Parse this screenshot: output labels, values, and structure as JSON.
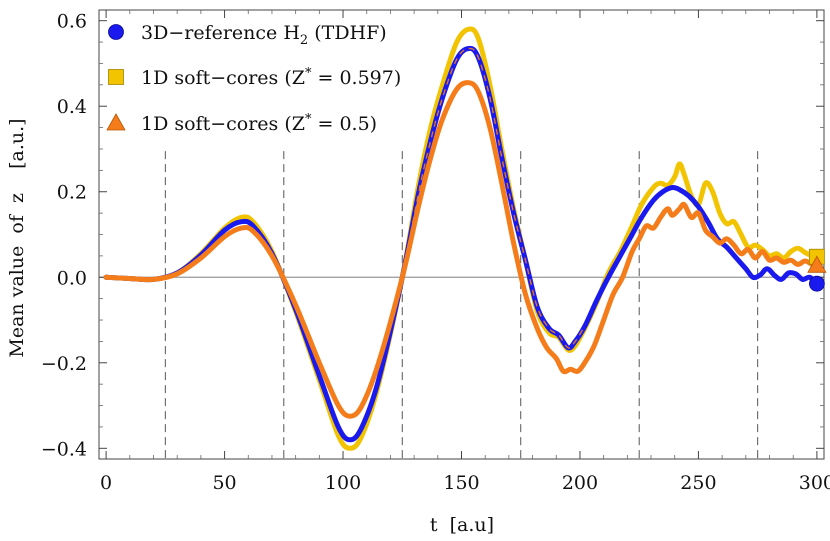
{
  "chart_data": {
    "type": "line",
    "title": "",
    "xlabel": "t  [a.u]",
    "ylabel": "Mean value  of  z    [a.u.]",
    "xlim": [
      -3,
      303
    ],
    "ylim": [
      -0.425,
      0.625
    ],
    "xticks": [
      0,
      50,
      100,
      150,
      200,
      250,
      300
    ],
    "xtick_labels": [
      "0",
      "50",
      "100",
      "150",
      "200",
      "250",
      "300"
    ],
    "yticks": [
      -0.4,
      -0.2,
      0.0,
      0.2,
      0.4,
      0.6
    ],
    "ytick_labels": [
      "−0.4",
      "−0.2",
      "0.0",
      "0.2",
      "0.4",
      "0.6"
    ],
    "vlines": [
      25,
      75,
      125,
      175,
      225,
      275
    ],
    "legend": [
      {
        "prefix": "3D−reference H",
        "sub": "2",
        "suffix": " (TDHF)",
        "marker": "circle",
        "color": "#1a1aee"
      },
      {
        "prefix": "1D soft−cores (Z",
        "sup": "*",
        "suffix": " = 0.597)",
        "marker": "square",
        "color": "#f2c400"
      },
      {
        "prefix": "1D soft−cores (Z",
        "sup": "*",
        "suffix": " = 0.5)",
        "marker": "triangle",
        "color": "#f47c1a"
      }
    ],
    "series": [
      {
        "name": "1D soft-cores (Z* = 0.597)",
        "color": "#f2c400",
        "end_marker": "square",
        "points": [
          [
            0,
            0
          ],
          [
            10,
            -0.003
          ],
          [
            20,
            -0.005
          ],
          [
            30,
            0.01
          ],
          [
            40,
            0.055
          ],
          [
            50,
            0.115
          ],
          [
            57,
            0.14
          ],
          [
            62,
            0.13
          ],
          [
            70,
            0.06
          ],
          [
            80,
            -0.08
          ],
          [
            90,
            -0.24
          ],
          [
            98,
            -0.37
          ],
          [
            103,
            -0.4
          ],
          [
            108,
            -0.37
          ],
          [
            115,
            -0.25
          ],
          [
            125,
            0.0
          ],
          [
            132,
            0.22
          ],
          [
            137,
            0.35
          ],
          [
            142,
            0.45
          ],
          [
            148,
            0.55
          ],
          [
            153,
            0.58
          ],
          [
            157,
            0.56
          ],
          [
            162,
            0.45
          ],
          [
            167,
            0.3
          ],
          [
            172,
            0.16
          ],
          [
            177,
            0.04
          ],
          [
            182,
            -0.08
          ],
          [
            187,
            -0.13
          ],
          [
            191,
            -0.14
          ],
          [
            195,
            -0.17
          ],
          [
            198,
            -0.16
          ],
          [
            202,
            -0.12
          ],
          [
            207,
            -0.06
          ],
          [
            212,
            0.01
          ],
          [
            217,
            0.06
          ],
          [
            222,
            0.12
          ],
          [
            226,
            0.17
          ],
          [
            231,
            0.21
          ],
          [
            234,
            0.22
          ],
          [
            237,
            0.215
          ],
          [
            240,
            0.235
          ],
          [
            242,
            0.265
          ],
          [
            244,
            0.24
          ],
          [
            247,
            0.19
          ],
          [
            250,
            0.17
          ],
          [
            253,
            0.22
          ],
          [
            256,
            0.2
          ],
          [
            259,
            0.15
          ],
          [
            262,
            0.125
          ],
          [
            265,
            0.13
          ],
          [
            268,
            0.1
          ],
          [
            271,
            0.07
          ],
          [
            274,
            0.075
          ],
          [
            277,
            0.065
          ],
          [
            280,
            0.05
          ],
          [
            283,
            0.055
          ],
          [
            286,
            0.045
          ],
          [
            289,
            0.06
          ],
          [
            292,
            0.068
          ],
          [
            295,
            0.058
          ],
          [
            298,
            0.05
          ],
          [
            300,
            0.048
          ]
        ]
      },
      {
        "name": "3D-reference H2 (TDHF)",
        "color": "#1a1aee",
        "end_marker": "circle",
        "points": [
          [
            0,
            0
          ],
          [
            10,
            -0.003
          ],
          [
            20,
            -0.005
          ],
          [
            30,
            0.01
          ],
          [
            40,
            0.052
          ],
          [
            50,
            0.11
          ],
          [
            57,
            0.13
          ],
          [
            62,
            0.12
          ],
          [
            70,
            0.055
          ],
          [
            80,
            -0.075
          ],
          [
            90,
            -0.23
          ],
          [
            98,
            -0.35
          ],
          [
            103,
            -0.38
          ],
          [
            108,
            -0.35
          ],
          [
            115,
            -0.24
          ],
          [
            125,
            0.0
          ],
          [
            132,
            0.2
          ],
          [
            137,
            0.32
          ],
          [
            142,
            0.42
          ],
          [
            148,
            0.51
          ],
          [
            153,
            0.535
          ],
          [
            157,
            0.515
          ],
          [
            162,
            0.42
          ],
          [
            167,
            0.28
          ],
          [
            172,
            0.15
          ],
          [
            177,
            0.04
          ],
          [
            182,
            -0.07
          ],
          [
            187,
            -0.12
          ],
          [
            191,
            -0.135
          ],
          [
            195,
            -0.165
          ],
          [
            198,
            -0.15
          ],
          [
            202,
            -0.115
          ],
          [
            207,
            -0.055
          ],
          [
            212,
            0.0
          ],
          [
            217,
            0.05
          ],
          [
            222,
            0.1
          ],
          [
            226,
            0.14
          ],
          [
            231,
            0.18
          ],
          [
            235,
            0.2
          ],
          [
            239,
            0.21
          ],
          [
            242,
            0.205
          ],
          [
            246,
            0.19
          ],
          [
            250,
            0.165
          ],
          [
            254,
            0.13
          ],
          [
            258,
            0.09
          ],
          [
            262,
            0.07
          ],
          [
            266,
            0.045
          ],
          [
            270,
            0.02
          ],
          [
            273,
            0.0
          ],
          [
            276,
            0.005
          ],
          [
            279,
            0.02
          ],
          [
            282,
            0.005
          ],
          [
            285,
            -0.005
          ],
          [
            288,
            0.01
          ],
          [
            291,
            0.008
          ],
          [
            294,
            -0.005
          ],
          [
            297,
            0.0
          ],
          [
            300,
            -0.015
          ]
        ]
      },
      {
        "name": "1D soft-cores (Z* = 0.5)",
        "color": "#f47c1a",
        "end_marker": "triangle",
        "points": [
          [
            0,
            0
          ],
          [
            10,
            -0.003
          ],
          [
            20,
            -0.005
          ],
          [
            30,
            0.008
          ],
          [
            40,
            0.045
          ],
          [
            50,
            0.095
          ],
          [
            57,
            0.115
          ],
          [
            62,
            0.108
          ],
          [
            70,
            0.05
          ],
          [
            80,
            -0.065
          ],
          [
            90,
            -0.2
          ],
          [
            98,
            -0.3
          ],
          [
            103,
            -0.325
          ],
          [
            108,
            -0.3
          ],
          [
            115,
            -0.2
          ],
          [
            125,
            0.0
          ],
          [
            132,
            0.17
          ],
          [
            137,
            0.28
          ],
          [
            142,
            0.37
          ],
          [
            148,
            0.44
          ],
          [
            153,
            0.455
          ],
          [
            157,
            0.435
          ],
          [
            162,
            0.35
          ],
          [
            167,
            0.22
          ],
          [
            172,
            0.08
          ],
          [
            177,
            -0.04
          ],
          [
            182,
            -0.12
          ],
          [
            186,
            -0.165
          ],
          [
            190,
            -0.19
          ],
          [
            193,
            -0.22
          ],
          [
            196,
            -0.215
          ],
          [
            199,
            -0.22
          ],
          [
            202,
            -0.2
          ],
          [
            206,
            -0.16
          ],
          [
            210,
            -0.1
          ],
          [
            214,
            -0.04
          ],
          [
            218,
            0.0
          ],
          [
            222,
            0.06
          ],
          [
            225,
            0.09
          ],
          [
            228,
            0.12
          ],
          [
            231,
            0.115
          ],
          [
            234,
            0.14
          ],
          [
            237,
            0.16
          ],
          [
            239,
            0.145
          ],
          [
            242,
            0.16
          ],
          [
            244,
            0.17
          ],
          [
            247,
            0.14
          ],
          [
            250,
            0.15
          ],
          [
            253,
            0.11
          ],
          [
            256,
            0.095
          ],
          [
            259,
            0.08
          ],
          [
            262,
            0.09
          ],
          [
            265,
            0.075
          ],
          [
            268,
            0.055
          ],
          [
            271,
            0.065
          ],
          [
            274,
            0.045
          ],
          [
            277,
            0.06
          ],
          [
            280,
            0.04
          ],
          [
            283,
            0.045
          ],
          [
            286,
            0.035
          ],
          [
            289,
            0.04
          ],
          [
            292,
            0.03
          ],
          [
            295,
            0.038
          ],
          [
            298,
            0.03
          ],
          [
            300,
            0.028
          ]
        ]
      }
    ]
  }
}
